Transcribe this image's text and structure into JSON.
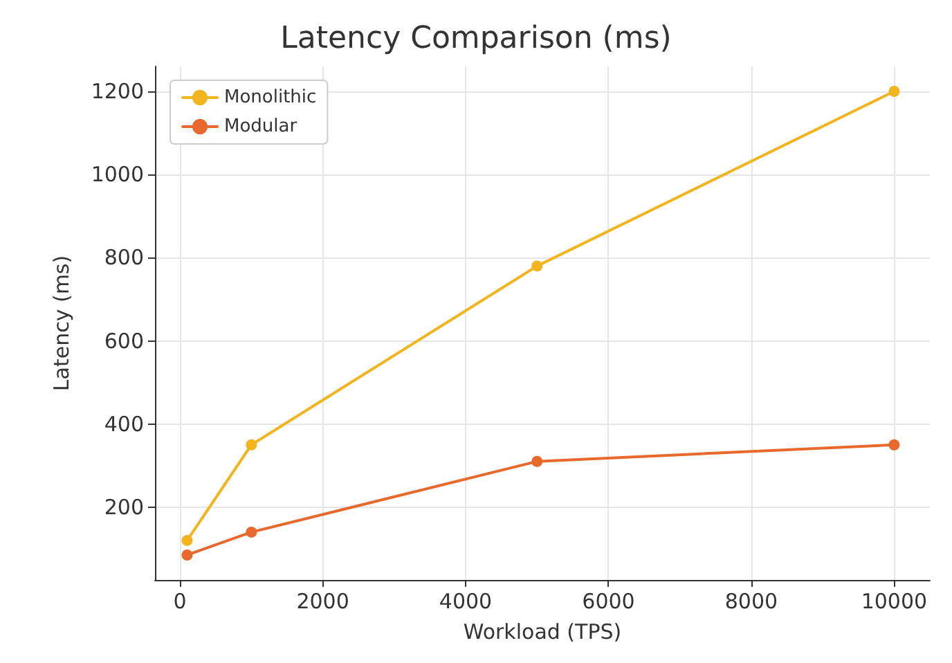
{
  "chart_data": {
    "type": "line",
    "title": "Latency Comparison (ms)",
    "xlabel": "Workload (TPS)",
    "ylabel": "Latency (ms)",
    "x": [
      100,
      1000,
      5000,
      10000
    ],
    "series": [
      {
        "name": "Monolithic",
        "color": "#f2b51f",
        "values": [
          120,
          350,
          780,
          1200
        ]
      },
      {
        "name": "Modular",
        "color": "#e8692d",
        "values": [
          85,
          140,
          310,
          350
        ]
      }
    ],
    "xlim": [
      -350,
      10500
    ],
    "xticks": [
      0,
      2000,
      4000,
      6000,
      8000,
      10000
    ],
    "ylim": [
      25,
      1260
    ],
    "yticks": [
      200,
      400,
      600,
      800,
      1000,
      1200
    ],
    "grid": true,
    "legend": "top left",
    "marker": "circle",
    "line_style": "solid"
  }
}
